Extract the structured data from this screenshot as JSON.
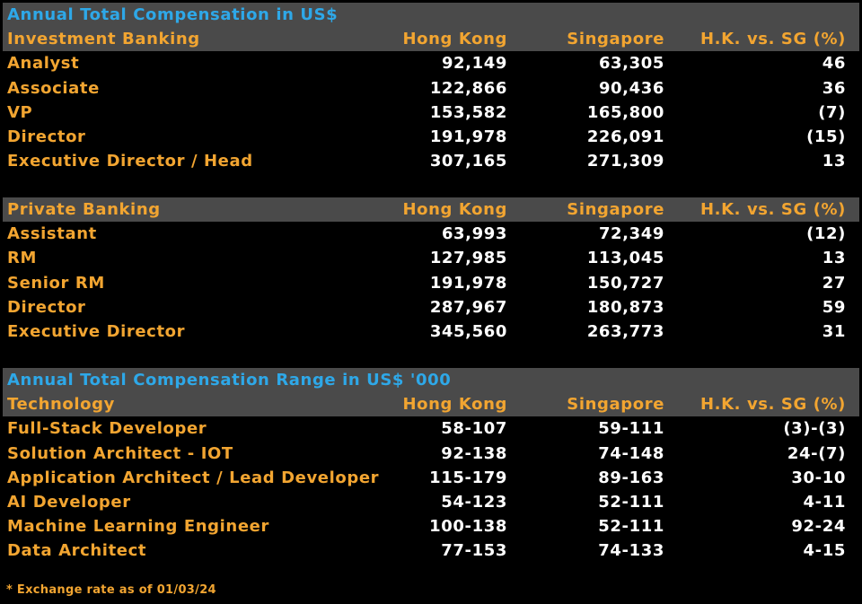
{
  "colors": {
    "background": "#000000",
    "band": "#4a4a4a",
    "title": "#2ea8e8",
    "label": "#f2a531",
    "value": "#ffffff"
  },
  "chart_data": [
    {
      "type": "table",
      "title": "Annual Total Compensation in US$",
      "columns": [
        "Investment Banking",
        "Hong Kong",
        "Singapore",
        "H.K. vs. SG (%)"
      ],
      "rows": [
        [
          "Analyst",
          "92,149",
          "63,305",
          "46"
        ],
        [
          "Associate",
          "122,866",
          "90,436",
          "36"
        ],
        [
          "VP",
          "153,582",
          "165,800",
          "(7)"
        ],
        [
          "Director",
          "191,978",
          "226,091",
          "(15)"
        ],
        [
          "Executive Director  / Head",
          "307,165",
          "271,309",
          "13"
        ]
      ]
    },
    {
      "type": "table",
      "title": "",
      "columns": [
        "Private Banking",
        "Hong Kong",
        "Singapore",
        "H.K. vs. SG (%)"
      ],
      "rows": [
        [
          "Assistant",
          "63,993",
          "72,349",
          "(12)"
        ],
        [
          "RM",
          "127,985",
          "113,045",
          "13"
        ],
        [
          "Senior RM",
          "191,978",
          "150,727",
          "27"
        ],
        [
          "Director",
          "287,967",
          "180,873",
          "59"
        ],
        [
          "Executive Director",
          "345,560",
          "263,773",
          "31"
        ]
      ]
    },
    {
      "type": "table",
      "title": "Annual Total Compensation Range in US$ '000",
      "columns": [
        "Technology",
        "Hong Kong",
        "Singapore",
        "H.K. vs. SG (%)"
      ],
      "rows": [
        [
          "Full-Stack Developer",
          "58-107",
          "59-111",
          "(3)-(3)"
        ],
        [
          "Solution Architect - IOT",
          "92-138",
          "74-148",
          "24-(7)"
        ],
        [
          "Application Architect / Lead Developer",
          "115-179",
          "89-163",
          "30-10"
        ],
        [
          "AI Developer",
          "54-123",
          "52-111",
          "4-11"
        ],
        [
          "Machine Learning Engineer",
          "100-138",
          "52-111",
          "92-24"
        ],
        [
          "Data Architect",
          "77-153",
          "74-133",
          "4-15"
        ]
      ]
    }
  ],
  "footnote": "* Exchange rate as of 01/03/24"
}
